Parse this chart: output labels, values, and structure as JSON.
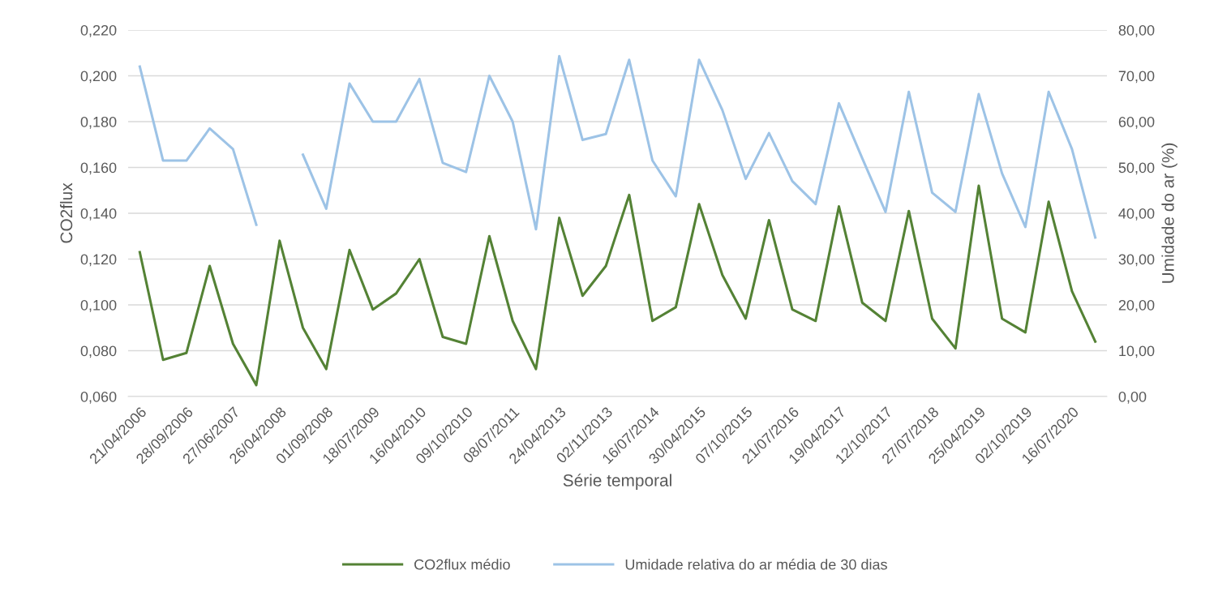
{
  "chart_data": {
    "type": "line",
    "xlabel": "Série temporal",
    "ylabel": "CO2flux",
    "y2label": "Umidade do ar (%)",
    "categories": [
      "21/04/2006",
      null,
      "28/09/2006",
      null,
      "27/06/2007",
      null,
      "26/04/2008",
      null,
      "01/09/2008",
      null,
      "18/07/2009",
      null,
      "16/04/2010",
      null,
      "09/10/2010",
      null,
      "08/07/2011",
      null,
      "24/04/2013",
      null,
      "02/11/2013",
      null,
      "16/07/2014",
      null,
      "30/04/2015",
      null,
      "07/10/2015",
      null,
      "21/07/2016",
      null,
      "19/04/2017",
      null,
      "12/10/2017",
      null,
      "27/07/2018",
      null,
      "25/04/2019",
      null,
      "02/10/2019",
      null,
      "16/07/2020",
      null
    ],
    "series": [
      {
        "name": "CO2flux médio",
        "color": "#548235",
        "values": [
          0.123,
          0.076,
          0.079,
          0.117,
          0.083,
          0.065,
          0.128,
          0.09,
          0.072,
          0.124,
          0.098,
          0.105,
          0.12,
          0.086,
          0.083,
          0.13,
          0.093,
          0.072,
          0.138,
          0.104,
          0.117,
          0.148,
          0.093,
          0.099,
          0.144,
          0.113,
          0.094,
          0.137,
          0.098,
          0.093,
          0.143,
          0.101,
          0.093,
          0.141,
          0.094,
          0.081,
          0.152,
          0.094,
          0.088,
          0.145,
          0.106,
          0.084
        ]
      },
      {
        "name": "Umidade relativa do ar média de 30 dias",
        "color": "#9dc3e6",
        "axis": "y2",
        "values": [
          72,
          51.5,
          51.5,
          58.5,
          54,
          37.5,
          null,
          52.8,
          41,
          68.3,
          60,
          60,
          69.3,
          51,
          49,
          70,
          60,
          36.5,
          74.3,
          56,
          57.3,
          73.5,
          51.5,
          43.7,
          73.5,
          62.5,
          47.5,
          57.5,
          47,
          42,
          64,
          52,
          40.3,
          66.5,
          44.5,
          40.3,
          66,
          48.7,
          37,
          66.5,
          54,
          34.7
        ]
      }
    ],
    "ylim": [
      0.06,
      0.22
    ],
    "yticks": [
      {
        "value": 0.06,
        "label": "0,060"
      },
      {
        "value": 0.08,
        "label": "0,080"
      },
      {
        "value": 0.1,
        "label": "0,100"
      },
      {
        "value": 0.12,
        "label": "0,120"
      },
      {
        "value": 0.14,
        "label": "0,140"
      },
      {
        "value": 0.16,
        "label": "0,160"
      },
      {
        "value": 0.18,
        "label": "0,180"
      },
      {
        "value": 0.2,
        "label": "0,200"
      },
      {
        "value": 0.22,
        "label": "0,220"
      }
    ],
    "y2lim": [
      0,
      80
    ],
    "y2ticks": [
      {
        "value": 0,
        "label": "0,00"
      },
      {
        "value": 10,
        "label": "10,00"
      },
      {
        "value": 20,
        "label": "20,00"
      },
      {
        "value": 30,
        "label": "30,00"
      },
      {
        "value": 40,
        "label": "40,00"
      },
      {
        "value": 50,
        "label": "50,00"
      },
      {
        "value": 60,
        "label": "60,00"
      },
      {
        "value": 70,
        "label": "70,00"
      },
      {
        "value": 80,
        "label": "80,00"
      }
    ],
    "grid": "y",
    "legend": "bottom",
    "marker": "none",
    "line_style": "solid"
  }
}
